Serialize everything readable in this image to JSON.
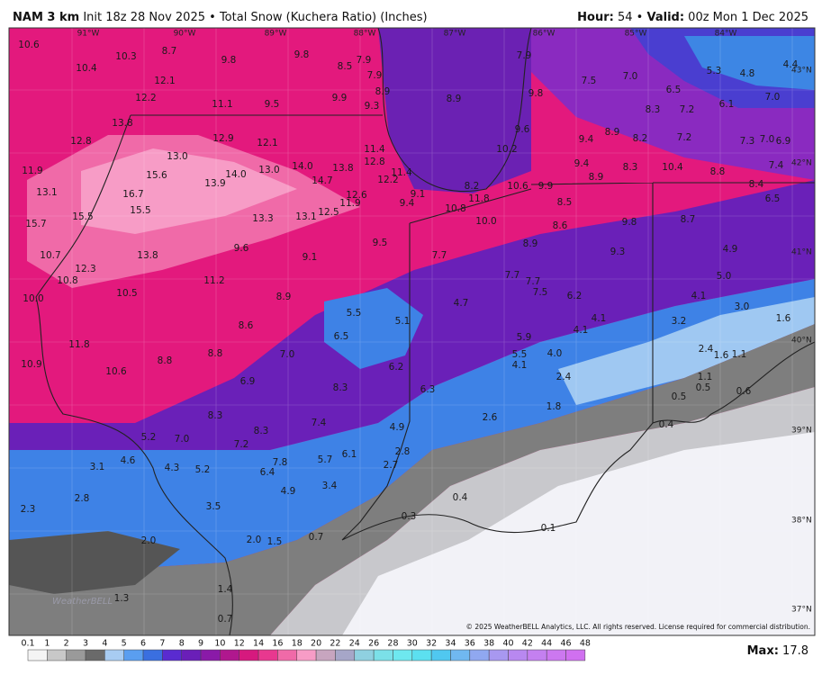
{
  "header": {
    "model": "NAM 3 km",
    "init": "Init 18z 28 Nov 2025",
    "separator": "•",
    "product": "Total Snow (Kuchera Ratio) (Inches)",
    "hour_label": "Hour:",
    "hour": "54",
    "valid_label": "Valid:",
    "valid": "00z Mon 1 Dec 2025"
  },
  "longitudes": [
    "91°W",
    "90°W",
    "89°W",
    "88°W",
    "87°W",
    "86°W",
    "85°W",
    "84°W"
  ],
  "latitudes": [
    "43°N",
    "42°N",
    "41°N",
    "40°N",
    "39°N",
    "38°N",
    "37°N"
  ],
  "snow_labels": [
    "10.6",
    "10.3",
    "8.7",
    "9.8",
    "9.8",
    "8.5",
    "7.9",
    "10.4",
    "12.1",
    "7.9",
    "8.9",
    "8.9",
    "7.9",
    "9.8",
    "7.5",
    "7.0",
    "5.3",
    "4.8",
    "4.4",
    "6.5",
    "7.0",
    "12.2",
    "11.1",
    "9.5",
    "9.9",
    "9.3",
    "8.3",
    "7.2",
    "6.1",
    "13.8",
    "9.6",
    "8.9",
    "9.4",
    "8.2",
    "7.2",
    "7.3",
    "7.0",
    "6.9",
    "12.8",
    "12.9",
    "12.1",
    "13.0",
    "11.4",
    "10.2",
    "11.9",
    "15.6",
    "13.9",
    "14.0",
    "13.0",
    "14.0",
    "13.8",
    "12.8",
    "14.7",
    "11.4",
    "12.2",
    "9.4",
    "8.3",
    "8.9",
    "10.4",
    "8.8",
    "7.4",
    "13.1",
    "16.7",
    "12.6",
    "9.1",
    "8.2",
    "10.6",
    "9.9",
    "8.4",
    "11.9",
    "9.4",
    "11.8",
    "8.5",
    "6.5",
    "15.5",
    "15.5",
    "13.3",
    "13.1",
    "12.5",
    "10.8",
    "10.0",
    "8.6",
    "9.8",
    "8.7",
    "15.7",
    "9.6",
    "9.5",
    "8.9",
    "10.7",
    "13.8",
    "9.1",
    "7.7",
    "9.3",
    "4.9",
    "12.3",
    "10.8",
    "11.2",
    "7.7",
    "7.7",
    "5.0",
    "10.5",
    "8.9",
    "7.5",
    "6.2",
    "4.7",
    "4.1",
    "3.0",
    "10.0",
    "5.5",
    "5.1",
    "4.1",
    "3.2",
    "1.6",
    "8.6",
    "6.5",
    "5.9",
    "4.1",
    "11.8",
    "10.9",
    "8.8",
    "8.8",
    "7.0",
    "5.5",
    "4.0",
    "2.4",
    "1.6",
    "1.1",
    "4.1",
    "6.2",
    "10.6",
    "2.4",
    "1.1",
    "6.9",
    "8.3",
    "0.5",
    "0.6",
    "6.3",
    "0.5",
    "1.8",
    "8.3",
    "2.6",
    "7.4",
    "4.9",
    "0.4",
    "8.3",
    "5.2",
    "7.0",
    "7.2",
    "2.8",
    "6.1",
    "5.7",
    "7.8",
    "4.6",
    "3.1",
    "4.3",
    "5.2",
    "6.4",
    "2.7",
    "4.9",
    "3.4",
    "2.8",
    "0.4",
    "2.3",
    "3.5",
    "0.3",
    "0.1",
    "0.7",
    "2.0",
    "1.5",
    "2.0",
    "1.4",
    "1.3",
    "0.7"
  ],
  "logo": "WeatherBELL",
  "copyright": "© 2025 WeatherBELL Analytics, LLC. All rights reserved. License required for commercial distribution.",
  "legend": [
    "0.1",
    "1",
    "2",
    "3",
    "4",
    "5",
    "6",
    "7",
    "8",
    "9",
    "10",
    "12",
    "14",
    "16",
    "18",
    "20",
    "22",
    "24",
    "26",
    "28",
    "30",
    "32",
    "34",
    "36",
    "38",
    "40",
    "42",
    "44",
    "46",
    "48"
  ],
  "max_label": "Max:",
  "max": "17.8"
}
